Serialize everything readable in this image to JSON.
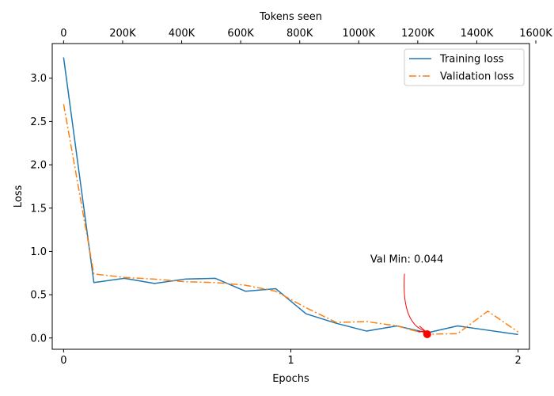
{
  "chart_data": {
    "type": "line",
    "xlabel": "Epochs",
    "ylabel": "Loss",
    "secondary_xlabel": "Tokens seen",
    "xlim": [
      -0.05,
      2.05
    ],
    "ylim": [
      -0.13,
      3.4
    ],
    "x_ticks": [
      0,
      1,
      2
    ],
    "y_ticks": [
      0.0,
      0.5,
      1.0,
      1.5,
      2.0,
      2.5,
      3.0
    ],
    "y_tick_labels": [
      "0.0",
      "0.5",
      "1.0",
      "1.5",
      "2.0",
      "2.5",
      "3.0"
    ],
    "top_ticks": [
      {
        "epoch": 0,
        "label": "0"
      },
      {
        "epoch": 0.2597,
        "label": "200K"
      },
      {
        "epoch": 0.5195,
        "label": "400K"
      },
      {
        "epoch": 0.7792,
        "label": "600K"
      },
      {
        "epoch": 1.039,
        "label": "800K"
      },
      {
        "epoch": 1.2987,
        "label": "1000K"
      },
      {
        "epoch": 1.5584,
        "label": "1200K"
      },
      {
        "epoch": 1.8182,
        "label": "1400K"
      },
      {
        "epoch": 2.0779,
        "label": "1600K"
      }
    ],
    "x": [
      0,
      0.1333,
      0.2667,
      0.4,
      0.5333,
      0.6667,
      0.8,
      0.9333,
      1.0667,
      1.2,
      1.3333,
      1.4667,
      1.6,
      1.7333,
      1.8667,
      2.0
    ],
    "series": [
      {
        "name": "Training loss",
        "color": "#1f77b4",
        "dash": "solid",
        "values": [
          3.24,
          0.64,
          0.69,
          0.63,
          0.68,
          0.69,
          0.54,
          0.57,
          0.28,
          0.17,
          0.08,
          0.14,
          0.06,
          0.14,
          0.09,
          0.04
        ]
      },
      {
        "name": "Validation loss",
        "color": "#ff7f0e",
        "dash": "dashdot",
        "values": [
          2.7,
          0.74,
          0.7,
          0.68,
          0.65,
          0.64,
          0.61,
          0.54,
          0.35,
          0.18,
          0.19,
          0.14,
          0.044,
          0.05,
          0.31,
          0.07
        ]
      }
    ],
    "annotation": {
      "text": "Val Min: 0.044",
      "point_epoch": 1.6,
      "point_value": 0.044,
      "text_epoch": 1.5,
      "text_value": 0.87,
      "marker_color": "#ff0000",
      "arrow_color": "#ff0000"
    },
    "legend_position": "top-right",
    "grid": false
  }
}
